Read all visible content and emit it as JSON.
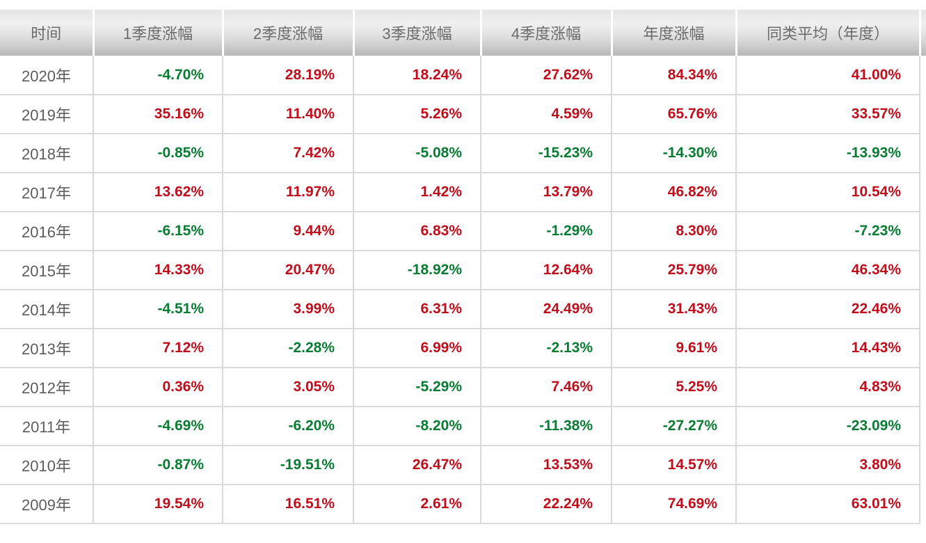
{
  "table": {
    "columns": [
      {
        "label": "时间"
      },
      {
        "label": "1季度涨幅"
      },
      {
        "label": "2季度涨幅"
      },
      {
        "label": "3季度涨幅"
      },
      {
        "label": "4季度涨幅"
      },
      {
        "label": "年度涨幅"
      },
      {
        "label": "同类平均（年度）"
      }
    ],
    "rows": [
      {
        "year": "2020年",
        "values": [
          "-4.70%",
          "28.19%",
          "18.24%",
          "27.62%",
          "84.34%",
          "41.00%"
        ]
      },
      {
        "year": "2019年",
        "values": [
          "35.16%",
          "11.40%",
          "5.26%",
          "4.59%",
          "65.76%",
          "33.57%"
        ]
      },
      {
        "year": "2018年",
        "values": [
          "-0.85%",
          "7.42%",
          "-5.08%",
          "-15.23%",
          "-14.30%",
          "-13.93%"
        ]
      },
      {
        "year": "2017年",
        "values": [
          "13.62%",
          "11.97%",
          "1.42%",
          "13.79%",
          "46.82%",
          "10.54%"
        ]
      },
      {
        "year": "2016年",
        "values": [
          "-6.15%",
          "9.44%",
          "6.83%",
          "-1.29%",
          "8.30%",
          "-7.23%"
        ]
      },
      {
        "year": "2015年",
        "values": [
          "14.33%",
          "20.47%",
          "-18.92%",
          "12.64%",
          "25.79%",
          "46.34%"
        ]
      },
      {
        "year": "2014年",
        "values": [
          "-4.51%",
          "3.99%",
          "6.31%",
          "24.49%",
          "31.43%",
          "22.46%"
        ]
      },
      {
        "year": "2013年",
        "values": [
          "7.12%",
          "-2.28%",
          "6.99%",
          "-2.13%",
          "9.61%",
          "14.43%"
        ]
      },
      {
        "year": "2012年",
        "values": [
          "0.36%",
          "3.05%",
          "-5.29%",
          "7.46%",
          "5.25%",
          "4.83%"
        ]
      },
      {
        "year": "2011年",
        "values": [
          "-4.69%",
          "-6.20%",
          "-8.20%",
          "-11.38%",
          "-27.27%",
          "-23.09%"
        ]
      },
      {
        "year": "2010年",
        "values": [
          "-0.87%",
          "-19.51%",
          "26.47%",
          "13.53%",
          "14.57%",
          "3.80%"
        ]
      },
      {
        "year": "2009年",
        "values": [
          "19.54%",
          "16.51%",
          "2.61%",
          "22.24%",
          "74.69%",
          "63.01%"
        ]
      }
    ],
    "colors": {
      "positive": "#c00d1c",
      "negative": "#097b33",
      "border": "#d9d9d9",
      "header_text": "#6b6b6b",
      "year_text": "#5d5d5f"
    }
  }
}
